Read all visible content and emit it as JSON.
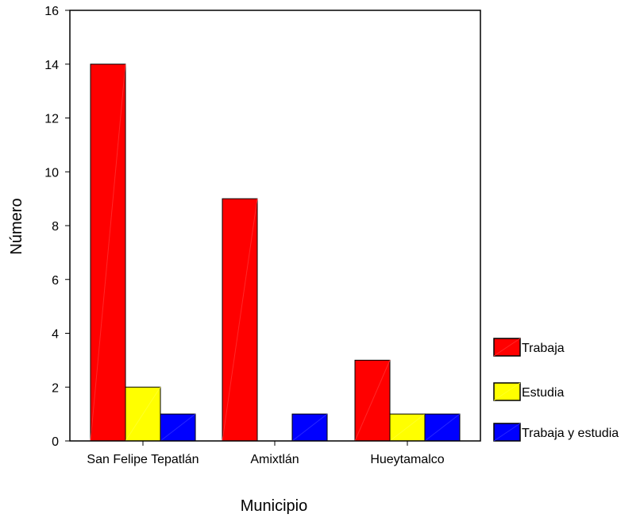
{
  "chart_data": {
    "type": "bar",
    "xlabel": "Municipio",
    "ylabel": "Número",
    "categories": [
      "San Felipe Tepatlán",
      "Amixtlán",
      "Hueytamalco"
    ],
    "series": [
      {
        "name": "Trabaja",
        "values": [
          14,
          9,
          3
        ],
        "color": "#ff0000"
      },
      {
        "name": "Estudia",
        "values": [
          2,
          0,
          1
        ],
        "color": "#ffff00"
      },
      {
        "name": "Trabaja y estudia",
        "values": [
          1,
          1,
          1
        ],
        "color": "#0000ff"
      }
    ],
    "yticks": [
      0,
      2,
      4,
      6,
      8,
      10,
      12,
      14,
      16
    ],
    "ylim": [
      0,
      16
    ],
    "grid": false,
    "legend_position": "right"
  }
}
